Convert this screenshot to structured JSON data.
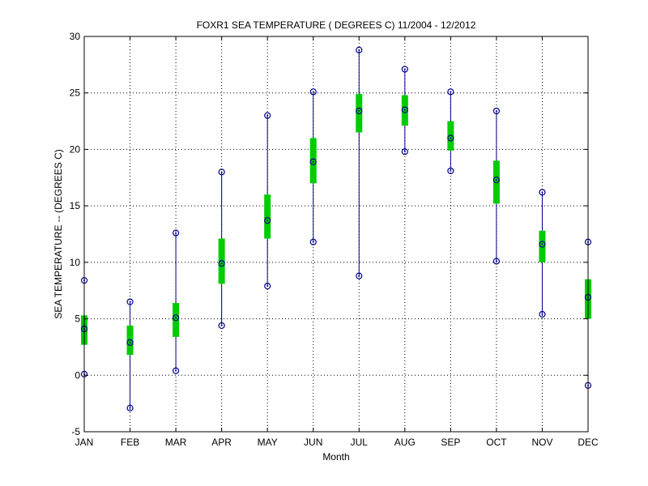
{
  "chart_data": {
    "type": "boxplot",
    "title": "FOXR1  SEA TEMPERATURE ( DEGREES C) 11/2004 - 12/2012",
    "xlabel": "Month",
    "ylabel": "SEA TEMPERATURE -- (DEGREES C)",
    "ylim": [
      -5,
      30
    ],
    "yticks": [
      -5,
      0,
      5,
      10,
      15,
      20,
      25,
      30
    ],
    "grid": true,
    "categories": [
      "JAN",
      "FEB",
      "MAR",
      "APR",
      "MAY",
      "JUN",
      "JUL",
      "AUG",
      "SEP",
      "OCT",
      "NOV",
      "DEC"
    ],
    "min": [
      0.1,
      -2.9,
      0.4,
      4.4,
      7.9,
      11.8,
      8.8,
      19.8,
      18.1,
      10.1,
      5.4,
      -0.9
    ],
    "q1": [
      2.7,
      1.8,
      3.4,
      8.1,
      12.1,
      17.0,
      21.5,
      22.1,
      19.9,
      15.2,
      10.0,
      5.0
    ],
    "median": [
      4.1,
      2.9,
      5.1,
      9.9,
      13.7,
      18.9,
      23.4,
      23.5,
      21.0,
      17.3,
      11.6,
      6.9
    ],
    "q3": [
      5.3,
      4.4,
      6.4,
      12.1,
      16.0,
      21.0,
      24.9,
      24.8,
      22.5,
      19.0,
      12.8,
      8.5
    ],
    "max": [
      8.4,
      6.5,
      12.6,
      18.0,
      23.0,
      25.1,
      28.8,
      27.1,
      25.1,
      23.4,
      16.2,
      11.8
    ],
    "colors": {
      "whisker": "#00008b",
      "box": "#00cc00",
      "marker": "#00008b",
      "grid": "#000000"
    }
  }
}
